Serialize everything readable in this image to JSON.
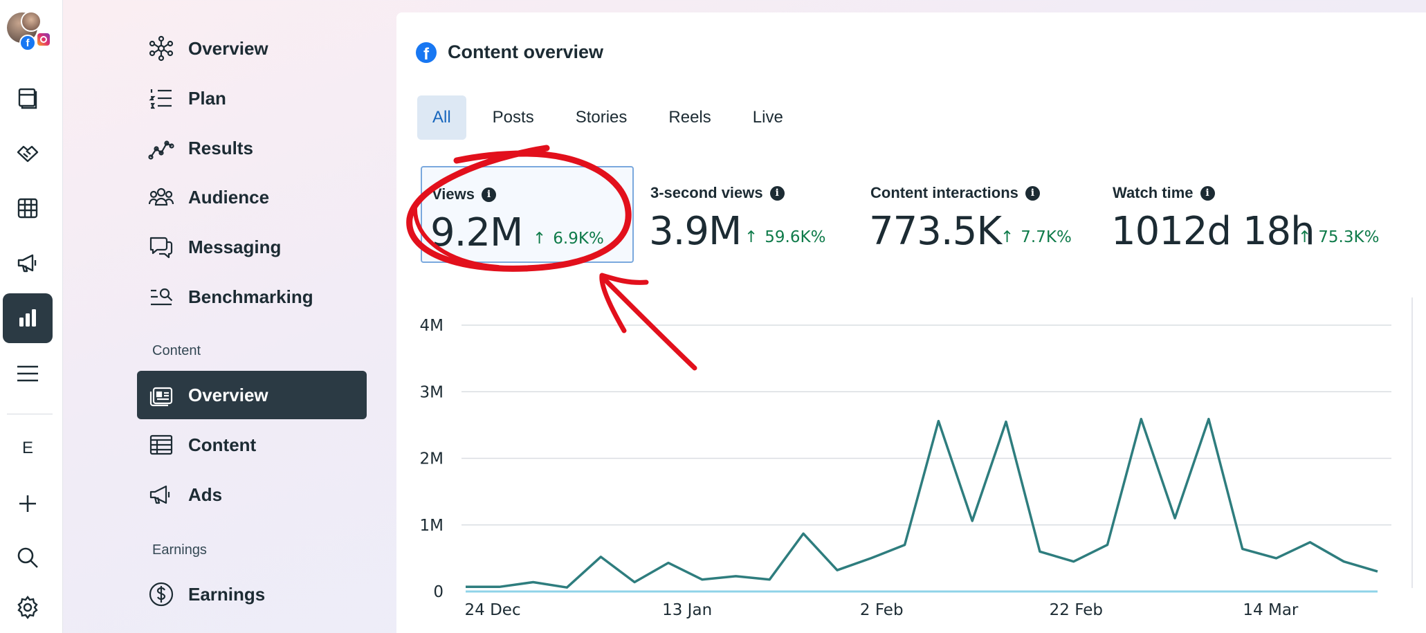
{
  "rail": {
    "letter": "E",
    "items": [
      {
        "name": "pages-icon"
      },
      {
        "name": "partnerships-icon"
      },
      {
        "name": "content-table-icon"
      },
      {
        "name": "ads-megaphone-icon"
      },
      {
        "name": "insights-chart-icon",
        "active": true
      },
      {
        "name": "menu-icon"
      },
      {
        "name": "plus-icon"
      },
      {
        "name": "search-icon"
      },
      {
        "name": "settings-icon"
      }
    ]
  },
  "sidenav": {
    "items": [
      {
        "label": "Overview",
        "icon": "network-icon"
      },
      {
        "label": "Plan",
        "icon": "list-icon"
      },
      {
        "label": "Results",
        "icon": "trend-icon"
      },
      {
        "label": "Audience",
        "icon": "people-icon"
      },
      {
        "label": "Messaging",
        "icon": "chat-icon"
      },
      {
        "label": "Benchmarking",
        "icon": "benchmark-icon"
      }
    ],
    "section_content": "Content",
    "content_items": [
      {
        "label": "Overview",
        "icon": "content-overview-icon",
        "active": true
      },
      {
        "label": "Content",
        "icon": "table-icon"
      },
      {
        "label": "Ads",
        "icon": "megaphone-icon"
      }
    ],
    "section_earnings": "Earnings",
    "earnings_items": [
      {
        "label": "Earnings",
        "icon": "dollar-icon"
      }
    ]
  },
  "card": {
    "title": "Content overview",
    "tabs": [
      {
        "label": "All",
        "active": true
      },
      {
        "label": "Posts"
      },
      {
        "label": "Stories"
      },
      {
        "label": "Reels"
      },
      {
        "label": "Live"
      }
    ],
    "metrics": [
      {
        "label": "Views",
        "value": "9.2M",
        "delta": "6.9K%",
        "selected": true
      },
      {
        "label": "3-second views",
        "value": "3.9M",
        "delta": "59.6K%"
      },
      {
        "label": "Content interactions",
        "value": "773.5K",
        "delta": "7.7K%"
      },
      {
        "label": "Watch time",
        "value": "1012d 18h",
        "delta": "75.3K%"
      }
    ]
  },
  "colors": {
    "line": "#2e7d7e",
    "baseline": "#8fd3e8",
    "delta_positive": "#0f7b4a",
    "annotation": "#e2101c",
    "active_nav": "#2b3a44"
  },
  "chart_data": {
    "type": "line",
    "title": "",
    "xlabel": "",
    "ylabel": "",
    "ylim": [
      0,
      4000000
    ],
    "y_ticks": [
      "4M",
      "3M",
      "2M",
      "1M",
      "0"
    ],
    "x_ticks": [
      "24 Dec",
      "13 Jan",
      "2 Feb",
      "22 Feb",
      "14 Mar"
    ],
    "x_start": "2023-12-21",
    "grid": true,
    "series": [
      {
        "name": "",
        "values": [
          70000,
          70000,
          140000,
          60000,
          520000,
          140000,
          430000,
          180000,
          230000,
          180000,
          870000,
          320000,
          500000,
          700000,
          2560000,
          1060000,
          2550000,
          600000,
          450000,
          700000,
          2590000,
          1100000,
          2590000,
          640000,
          500000,
          740000,
          450000,
          300000
        ]
      },
      {
        "name": "",
        "values": [
          0,
          0,
          0,
          0,
          0,
          0,
          0,
          0,
          0,
          0,
          0,
          0,
          0,
          0,
          0,
          0,
          0,
          0,
          0,
          0,
          0,
          0,
          0,
          0,
          0,
          0,
          0,
          0
        ]
      }
    ]
  }
}
